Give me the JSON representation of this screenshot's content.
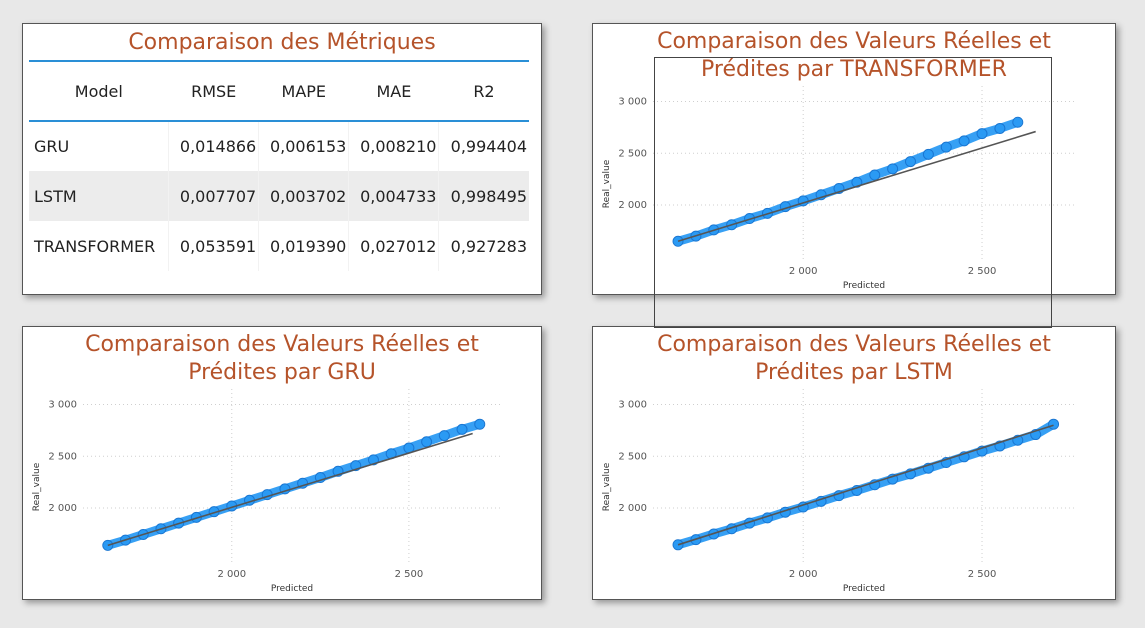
{
  "table": {
    "title": "Comparaison des Métriques",
    "columns": [
      "Model",
      "RMSE",
      "MAPE",
      "MAE",
      "R2"
    ],
    "rows": [
      [
        "GRU",
        "0,014866",
        "0,006153",
        "0,008210",
        "0,994404"
      ],
      [
        "LSTM",
        "0,007707",
        "0,003702",
        "0,004733",
        "0,998495"
      ],
      [
        "TRANSFORMER",
        "0,053591",
        "0,019390",
        "0,027012",
        "0,927283"
      ]
    ]
  },
  "chart_data": [
    {
      "id": "transformer",
      "type": "scatter",
      "title": "Comparaison des Valeurs Réelles et Prédites par TRANSFORMER",
      "title_lines": [
        "Comparaison des Valeurs Réelles et",
        "Prédites par TRANSFORMER"
      ],
      "xlabel": "Predicted",
      "ylabel": "Real_value",
      "xlim": [
        1580,
        2760
      ],
      "ylim": [
        1450,
        3150
      ],
      "xticks": [
        2000,
        2500
      ],
      "xtick_labels": [
        "2 000",
        "2 500"
      ],
      "yticks": [
        2000,
        2500,
        3000
      ],
      "ytick_labels": [
        "2 000",
        "2 500",
        "3 000"
      ],
      "grid": true,
      "points_color": "#2196f3",
      "points": [
        [
          1650,
          1650
        ],
        [
          1700,
          1700
        ],
        [
          1750,
          1760
        ],
        [
          1800,
          1810
        ],
        [
          1850,
          1870
        ],
        [
          1900,
          1920
        ],
        [
          1950,
          1985
        ],
        [
          2000,
          2040
        ],
        [
          2050,
          2100
        ],
        [
          2100,
          2160
        ],
        [
          2150,
          2220
        ],
        [
          2200,
          2290
        ],
        [
          2250,
          2350
        ],
        [
          2300,
          2420
        ],
        [
          2350,
          2490
        ],
        [
          2400,
          2560
        ],
        [
          2450,
          2620
        ],
        [
          2500,
          2690
        ],
        [
          2550,
          2740
        ],
        [
          2600,
          2800
        ]
      ],
      "trend_color": "#555555",
      "trend": [
        [
          1650,
          1650
        ],
        [
          2650,
          2710
        ]
      ]
    },
    {
      "id": "gru",
      "type": "scatter",
      "title": "Comparaison des Valeurs Réelles et Prédites par GRU",
      "title_lines": [
        "Comparaison des Valeurs Réelles et",
        "Prédites par GRU"
      ],
      "xlabel": "Predicted",
      "ylabel": "Real_value",
      "xlim": [
        1580,
        2760
      ],
      "ylim": [
        1450,
        3150
      ],
      "xticks": [
        2000,
        2500
      ],
      "xtick_labels": [
        "2 000",
        "2 500"
      ],
      "yticks": [
        2000,
        2500,
        3000
      ],
      "ytick_labels": [
        "2 000",
        "2 500",
        "3 000"
      ],
      "grid": true,
      "points_color": "#2196f3",
      "points": [
        [
          1650,
          1640
        ],
        [
          1700,
          1690
        ],
        [
          1750,
          1745
        ],
        [
          1800,
          1800
        ],
        [
          1850,
          1855
        ],
        [
          1900,
          1910
        ],
        [
          1950,
          1965
        ],
        [
          2000,
          2020
        ],
        [
          2050,
          2075
        ],
        [
          2100,
          2130
        ],
        [
          2150,
          2185
        ],
        [
          2200,
          2240
        ],
        [
          2250,
          2295
        ],
        [
          2300,
          2355
        ],
        [
          2350,
          2410
        ],
        [
          2400,
          2465
        ],
        [
          2450,
          2525
        ],
        [
          2500,
          2580
        ],
        [
          2550,
          2640
        ],
        [
          2600,
          2700
        ],
        [
          2650,
          2760
        ],
        [
          2700,
          2810
        ]
      ],
      "trend_color": "#555555",
      "trend": [
        [
          1650,
          1640
        ],
        [
          2680,
          2720
        ]
      ]
    },
    {
      "id": "lstm",
      "type": "scatter",
      "title": "Comparaison des Valeurs Réelles et Prédites par LSTM",
      "title_lines": [
        "Comparaison des Valeurs Réelles et",
        "Prédites par LSTM"
      ],
      "xlabel": "Predicted",
      "ylabel": "Real_value",
      "xlim": [
        1580,
        2760
      ],
      "ylim": [
        1450,
        3150
      ],
      "xticks": [
        2000,
        2500
      ],
      "xtick_labels": [
        "2 000",
        "2 500"
      ],
      "yticks": [
        2000,
        2500,
        3000
      ],
      "ytick_labels": [
        "2 000",
        "2 500",
        "3 000"
      ],
      "grid": true,
      "points_color": "#2196f3",
      "points": [
        [
          1650,
          1645
        ],
        [
          1700,
          1695
        ],
        [
          1750,
          1750
        ],
        [
          1800,
          1800
        ],
        [
          1850,
          1855
        ],
        [
          1900,
          1905
        ],
        [
          1950,
          1960
        ],
        [
          2000,
          2010
        ],
        [
          2050,
          2065
        ],
        [
          2100,
          2120
        ],
        [
          2150,
          2170
        ],
        [
          2200,
          2225
        ],
        [
          2250,
          2280
        ],
        [
          2300,
          2330
        ],
        [
          2350,
          2385
        ],
        [
          2400,
          2440
        ],
        [
          2450,
          2495
        ],
        [
          2500,
          2550
        ],
        [
          2550,
          2600
        ],
        [
          2600,
          2655
        ],
        [
          2650,
          2710
        ],
        [
          2700,
          2810
        ]
      ],
      "trend_color": "#555555",
      "trend": [
        [
          1650,
          1645
        ],
        [
          2700,
          2800
        ]
      ]
    }
  ]
}
